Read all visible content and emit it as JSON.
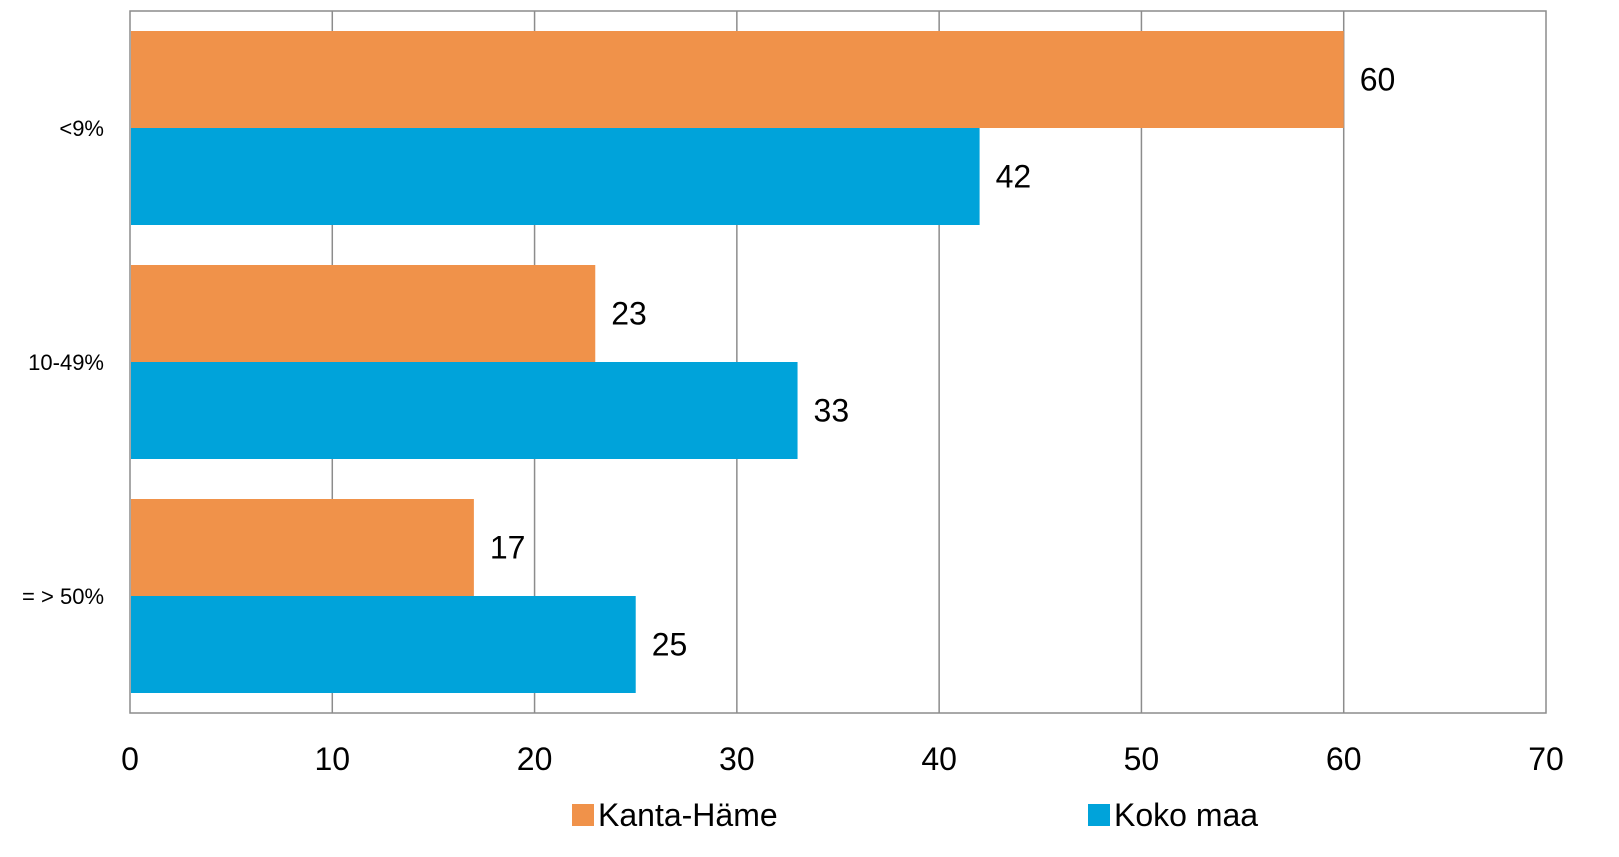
{
  "chart_data": {
    "type": "bar",
    "orientation": "horizontal",
    "categories": [
      "<9%",
      "10-49%",
      "= > 50%"
    ],
    "series": [
      {
        "name": "Kanta-Häme",
        "color": "#F0924A",
        "values": [
          60,
          23,
          17
        ]
      },
      {
        "name": "Koko maa",
        "color": "#00A3DA",
        "values": [
          42,
          33,
          25
        ]
      }
    ],
    "xlim": [
      0,
      70
    ],
    "xticks": [
      0,
      10,
      20,
      30,
      40,
      50,
      60,
      70
    ],
    "grid": true,
    "legend_position": "bottom"
  }
}
